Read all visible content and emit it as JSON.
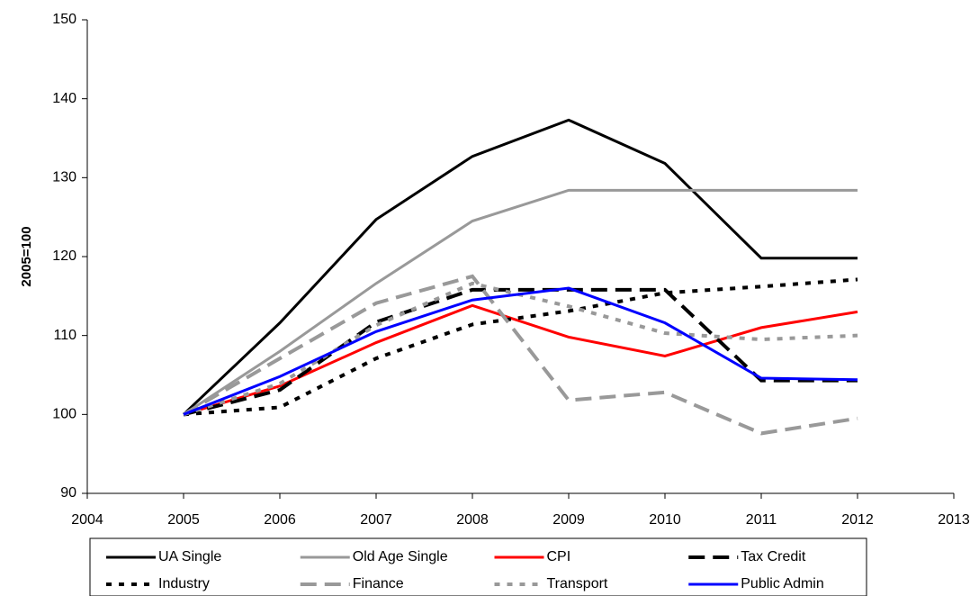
{
  "chart_data": {
    "type": "line",
    "ylabel": "2005=100",
    "x": [
      2005,
      2006,
      2007,
      2008,
      2009,
      2010,
      2011,
      2012
    ],
    "xlim": [
      2004,
      2013
    ],
    "xticks": [
      2004,
      2005,
      2006,
      2007,
      2008,
      2009,
      2010,
      2011,
      2012,
      2013
    ],
    "ylim": [
      90,
      150
    ],
    "yticks": [
      90,
      100,
      110,
      120,
      130,
      140,
      150
    ],
    "grid": false,
    "legend": "bottom",
    "series": [
      {
        "name": "UA Single",
        "color": "#000000",
        "dash": "solid",
        "values": [
          100,
          111.6,
          124.7,
          132.7,
          137.3,
          131.8,
          119.8,
          119.8
        ]
      },
      {
        "name": "Old Age Single",
        "color": "#999999",
        "dash": "solid",
        "values": [
          100,
          108.0,
          116.6,
          124.5,
          128.4,
          128.4,
          128.4,
          128.4
        ]
      },
      {
        "name": "CPI",
        "color": "#ff0000",
        "dash": "solid",
        "values": [
          100,
          103.6,
          109.1,
          113.8,
          109.8,
          107.4,
          111.0,
          113.0
        ]
      },
      {
        "name": "Tax Credit",
        "color": "#000000",
        "dash": "long",
        "values": [
          100,
          103.1,
          111.7,
          115.8,
          115.8,
          115.8,
          104.3,
          104.3
        ]
      },
      {
        "name": "Industry",
        "color": "#000000",
        "dash": "dot",
        "values": [
          100,
          100.9,
          107.1,
          111.4,
          113.1,
          115.4,
          116.2,
          117.1
        ]
      },
      {
        "name": "Finance",
        "color": "#999999",
        "dash": "long",
        "values": [
          100,
          107.1,
          114.1,
          117.5,
          101.8,
          102.8,
          97.6,
          99.5
        ]
      },
      {
        "name": "Transport",
        "color": "#999999",
        "dash": "dot",
        "values": [
          100,
          103.9,
          111.3,
          116.6,
          113.7,
          110.3,
          109.5,
          110.0
        ]
      },
      {
        "name": "Public Admin",
        "color": "#0000ff",
        "dash": "solid",
        "values": [
          100,
          104.8,
          110.5,
          114.5,
          116.0,
          111.6,
          104.6,
          104.4
        ]
      }
    ]
  }
}
